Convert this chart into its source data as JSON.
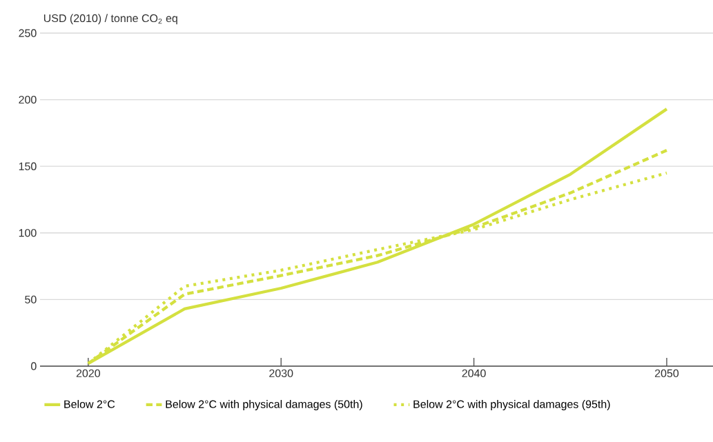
{
  "chart_data": {
    "type": "line",
    "ylabel": "USD (2010) / tonne CO$_{2}$ eq",
    "x": [
      2020,
      2025,
      2030,
      2035,
      2040,
      2045,
      2050
    ],
    "series": [
      {
        "name": "Below 2°C",
        "color": "#d4e040",
        "line_style": "solid",
        "values": [
          2,
          43,
          58.5,
          78,
          106.5,
          144,
          193
        ]
      },
      {
        "name": "Below 2°C with physical damages (50th)",
        "color": "#d4e040",
        "line_style": "dashed",
        "values": [
          2,
          54,
          68,
          83,
          104,
          130,
          162
        ]
      },
      {
        "name": "Below 2°C with physical damages (95th)",
        "color": "#d4e040",
        "line_style": "dotted",
        "values": [
          2,
          60,
          72,
          87.5,
          102.5,
          125,
          145
        ]
      }
    ],
    "xlim": [
      2017.5,
      2052.4
    ],
    "ylim": [
      0,
      250
    ],
    "xticks": [
      2020,
      2030,
      2040,
      2050
    ],
    "yticks": [
      0,
      50,
      100,
      150,
      200,
      250
    ],
    "grid": "y",
    "legend": "bottom"
  }
}
